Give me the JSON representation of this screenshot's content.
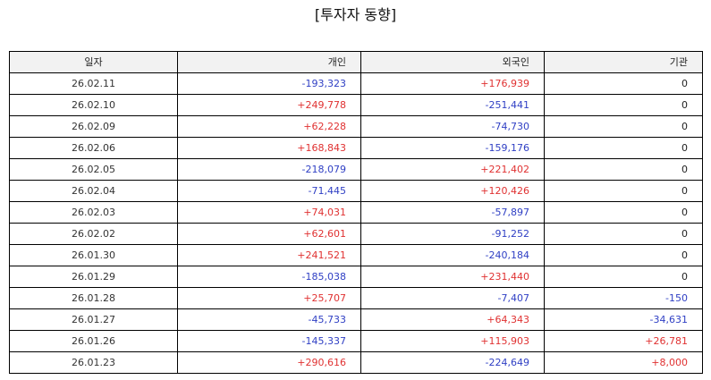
{
  "page": {
    "title": "[투자자 동향]"
  },
  "colors": {
    "positive": "#e03131",
    "negative": "#2f3fc4",
    "neutral": "#222222",
    "header_bg": "#f2f2f2"
  },
  "table": {
    "headers": [
      "일자",
      "개인",
      "외국인",
      "기관"
    ],
    "rows": [
      [
        "26.02.11",
        "-193,323",
        "+176,939",
        "0"
      ],
      [
        "26.02.10",
        "+249,778",
        "-251,441",
        "0"
      ],
      [
        "26.02.09",
        "+62,228",
        "-74,730",
        "0"
      ],
      [
        "26.02.06",
        "+168,843",
        "-159,176",
        "0"
      ],
      [
        "26.02.05",
        "-218,079",
        "+221,402",
        "0"
      ],
      [
        "26.02.04",
        "-71,445",
        "+120,426",
        "0"
      ],
      [
        "26.02.03",
        "+74,031",
        "-57,897",
        "0"
      ],
      [
        "26.02.02",
        "+62,601",
        "-91,252",
        "0"
      ],
      [
        "26.01.30",
        "+241,521",
        "-240,184",
        "0"
      ],
      [
        "26.01.29",
        "-185,038",
        "+231,440",
        "0"
      ],
      [
        "26.01.28",
        "+25,707",
        "-7,407",
        "-150"
      ],
      [
        "26.01.27",
        "-45,733",
        "+64,343",
        "-34,631"
      ],
      [
        "26.01.26",
        "-145,337",
        "+115,903",
        "+26,781"
      ],
      [
        "26.01.23",
        "+290,616",
        "-224,649",
        "+8,000"
      ]
    ]
  }
}
